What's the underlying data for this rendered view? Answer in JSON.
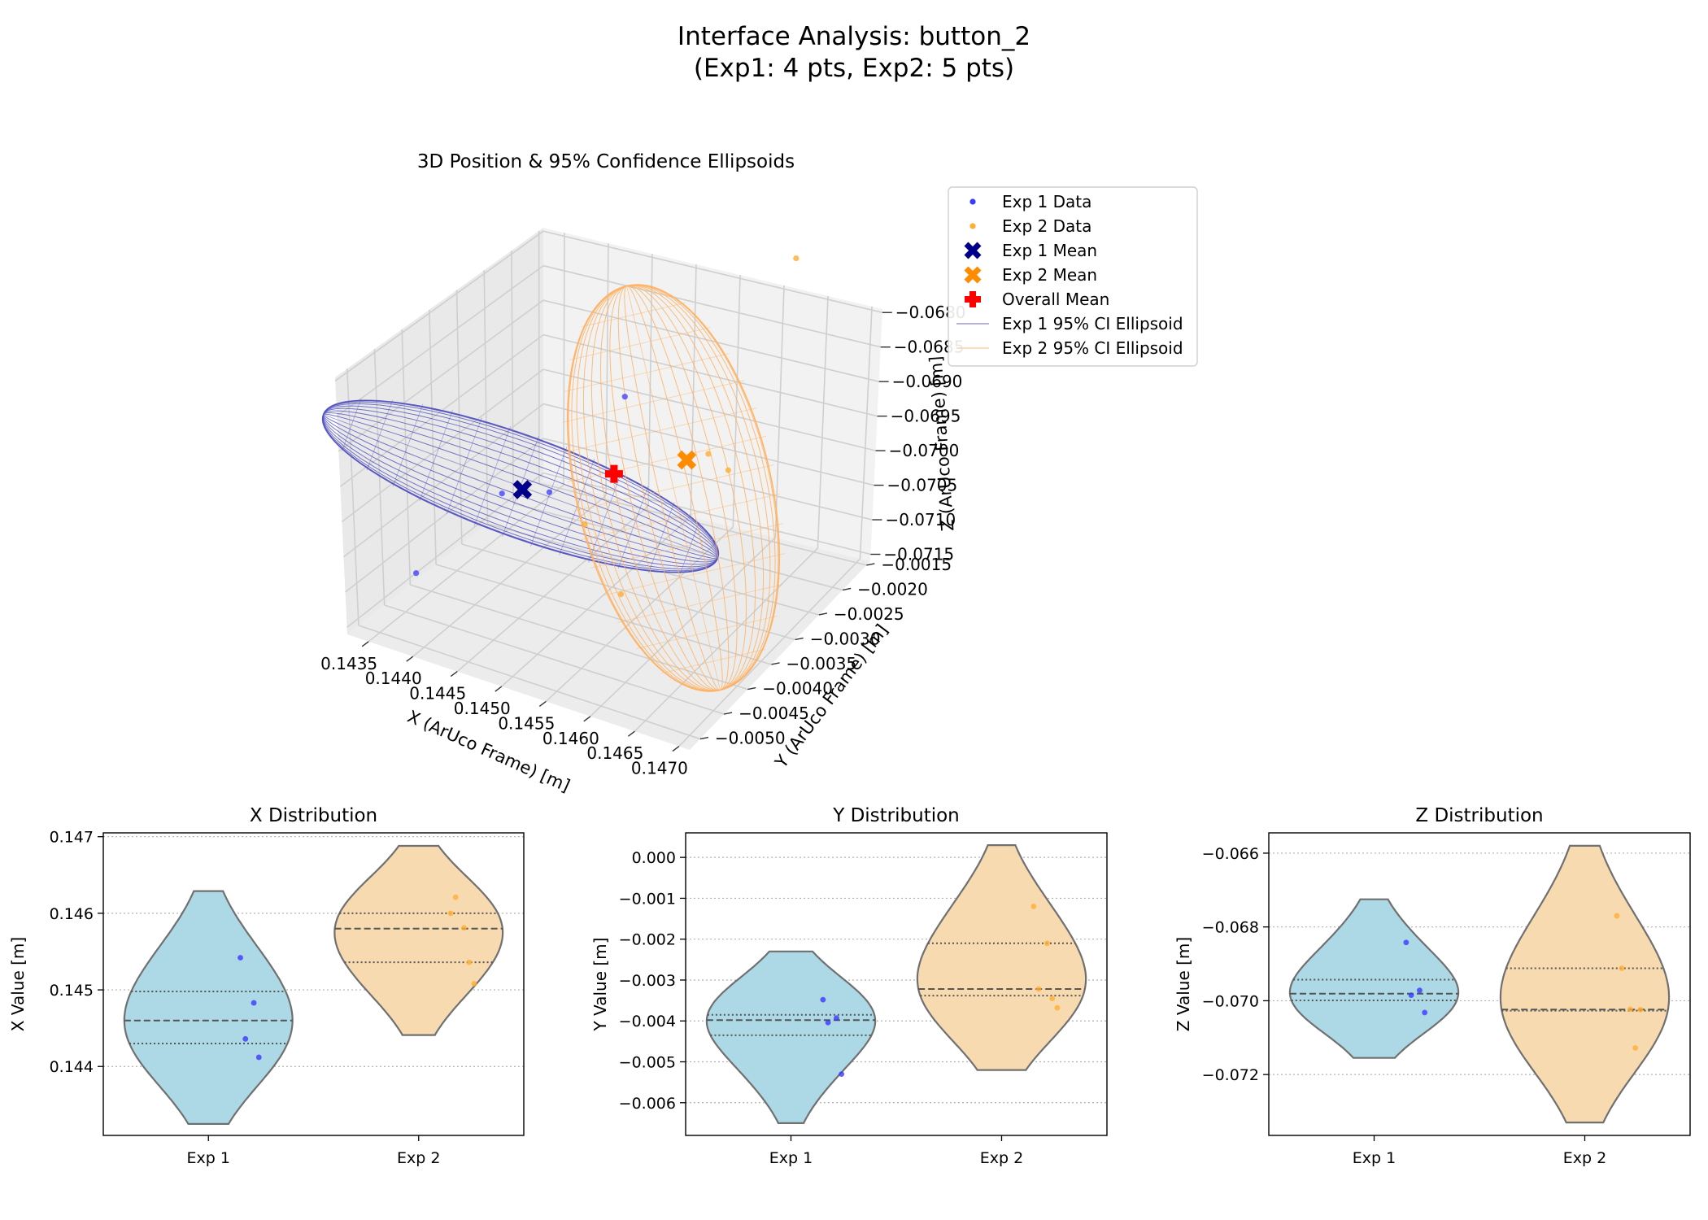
{
  "figure": {
    "title_line1": "Interface Analysis: button_2",
    "title_line2": "(Exp1: 4 pts, Exp2: 5 pts)"
  },
  "colors": {
    "exp1_data": "#3a3aff",
    "exp2_data": "#ffae33",
    "exp1_mean": "#00008b",
    "exp2_mean": "#ff8c00",
    "overall_mean": "#ff0000",
    "exp1_ellipsoid": "#5050c0",
    "exp2_ellipsoid": "#ffb060",
    "violin_exp1": "#add8e6",
    "violin_exp2": "#f7dab0",
    "violin_edge": "#707070"
  },
  "chart_data": [
    {
      "type": "scatter",
      "id": "scatter3d",
      "title": "3D Position & 95% Confidence Ellipsoids",
      "xlabel": "X (ArUco Frame) [m]",
      "ylabel": "Y (ArUco Frame) [m]",
      "zlabel": "Z (ArUco Frame) [m]",
      "x_ticks": [
        "0.1435",
        "0.1440",
        "0.1445",
        "0.1450",
        "0.1455",
        "0.1460",
        "0.1465",
        "0.1470"
      ],
      "y_ticks": [
        "−0.0015",
        "−0.0020",
        "−0.0025",
        "−0.0030",
        "−0.0035",
        "−0.0040",
        "−0.0045",
        "−0.0050"
      ],
      "z_ticks": [
        "−0.0680",
        "−0.0685",
        "−0.0690",
        "−0.0695",
        "−0.0700",
        "−0.0705",
        "−0.0710",
        "−0.0715"
      ],
      "legend_position": "upper right outside",
      "legend": [
        {
          "label": "Exp 1 Data",
          "kind": "dot",
          "color": "#3a3aff"
        },
        {
          "label": "Exp 2 Data",
          "kind": "dot",
          "color": "#ffae33"
        },
        {
          "label": "Exp 1 Mean",
          "kind": "x",
          "color": "#00008b"
        },
        {
          "label": "Exp 2 Mean",
          "kind": "x",
          "color": "#ff8c00"
        },
        {
          "label": "Overall Mean",
          "kind": "plus",
          "color": "#ff0000"
        },
        {
          "label": "Exp 1 95% CI Ellipsoid",
          "kind": "line",
          "color": "#9a9ad0"
        },
        {
          "label": "Exp 2 95% CI Ellipsoid",
          "kind": "line",
          "color": "#ffd0a0"
        }
      ],
      "series": [
        {
          "name": "Exp 1 Data",
          "points": [
            [
              0.14542,
              -0.00348,
              -0.06842
            ],
            [
              0.14483,
              -0.00393,
              -0.06972
            ],
            [
              0.14436,
              -0.00404,
              -0.06985
            ],
            [
              0.14412,
              -0.0053,
              -0.07032
            ]
          ]
        },
        {
          "name": "Exp 2 Data",
          "points": [
            [
              0.146,
              -0.0012,
              -0.0677
            ],
            [
              0.14581,
              -0.0021,
              -0.07023
            ],
            [
              0.14621,
              -0.00322,
              -0.06912
            ],
            [
              0.14536,
              -0.00345,
              -0.07128
            ],
            [
              0.14508,
              -0.00368,
              -0.07024
            ]
          ]
        },
        {
          "name": "Exp 1 Mean",
          "points": [
            [
              0.14468,
              -0.00419,
              -0.06958
            ]
          ]
        },
        {
          "name": "Exp 2 Mean",
          "points": [
            [
              0.14569,
              -0.00273,
              -0.06971
            ]
          ]
        },
        {
          "name": "Overall Mean",
          "points": [
            [
              0.14524,
              -0.00338,
              -0.06965
            ]
          ]
        }
      ]
    },
    {
      "type": "violin",
      "id": "violin_x",
      "title": "X Distribution",
      "ylabel": "X Value [m]",
      "categories": [
        "Exp 1",
        "Exp 2"
      ],
      "ylim": [
        0.1431,
        0.14705
      ],
      "yticks": [
        0.144,
        0.145,
        0.146,
        0.147
      ],
      "ytick_labels": [
        "0.144",
        "0.145",
        "0.146",
        "0.147"
      ],
      "violin_range": [
        [
          0.14325,
          0.14629
        ],
        [
          0.14441,
          0.14688
        ]
      ],
      "quartiles": [
        [
          0.1443,
          0.1446,
          0.14498
        ],
        [
          0.14536,
          0.1458,
          0.146
        ]
      ],
      "points": [
        [
          0.14542,
          0.14483,
          0.14436,
          0.14412
        ],
        [
          0.146,
          0.14581,
          0.14621,
          0.14536,
          0.14508
        ]
      ]
    },
    {
      "type": "violin",
      "id": "violin_y",
      "title": "Y Distribution",
      "ylabel": "Y Value [m]",
      "categories": [
        "Exp 1",
        "Exp 2"
      ],
      "ylim": [
        -0.0068,
        0.0006
      ],
      "yticks": [
        -0.006,
        -0.005,
        -0.004,
        -0.003,
        -0.002,
        -0.001,
        0.0
      ],
      "ytick_labels": [
        "−0.006",
        "−0.005",
        "−0.004",
        "−0.003",
        "−0.002",
        "−0.001",
        "0.000"
      ],
      "violin_range": [
        [
          -0.0065,
          -0.0023
        ],
        [
          -0.0052,
          0.0003
        ]
      ],
      "quartiles": [
        [
          -0.00435,
          -0.00398,
          -0.00385
        ],
        [
          -0.00338,
          -0.00322,
          -0.0021
        ]
      ],
      "points": [
        [
          -0.00348,
          -0.00393,
          -0.00404,
          -0.0053
        ],
        [
          -0.0012,
          -0.0021,
          -0.00322,
          -0.00345,
          -0.00368
        ]
      ]
    },
    {
      "type": "violin",
      "id": "violin_z",
      "title": "Z Distribution",
      "ylabel": "Z Value [m]",
      "categories": [
        "Exp 1",
        "Exp 2"
      ],
      "ylim": [
        -0.07365,
        -0.06545
      ],
      "yticks": [
        -0.072,
        -0.07,
        -0.068,
        -0.066
      ],
      "ytick_labels": [
        "−0.072",
        "−0.070",
        "−0.068",
        "−0.066"
      ],
      "violin_range": [
        [
          -0.07155,
          -0.06725
        ],
        [
          -0.0733,
          -0.0658
        ]
      ],
      "quartiles": [
        [
          -0.06999,
          -0.06981,
          -0.06943
        ],
        [
          -0.07027,
          -0.07024,
          -0.06912
        ]
      ],
      "points": [
        [
          -0.06842,
          -0.06972,
          -0.06985,
          -0.07032
        ],
        [
          -0.0677,
          -0.07023,
          -0.06912,
          -0.07128,
          -0.07024
        ]
      ]
    }
  ]
}
